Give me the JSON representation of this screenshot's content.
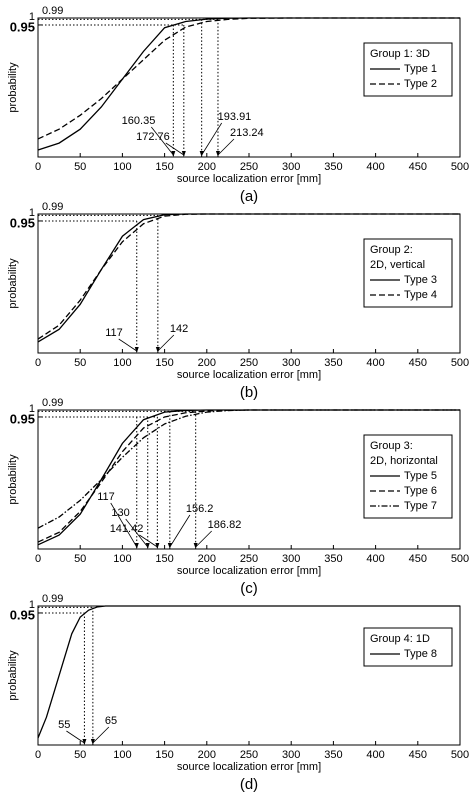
{
  "chart_data": [
    {
      "type": "line",
      "xlabel": "source localization error [mm]",
      "ylabel": "probability",
      "caption": "(a)",
      "legend_title": [
        "Group 1: 3D"
      ],
      "legend": "center right",
      "xlim": [
        0,
        500
      ],
      "ylim": [
        0,
        1
      ],
      "xticks": [
        0,
        50,
        100,
        150,
        200,
        250,
        300,
        350,
        400,
        450,
        500
      ],
      "yticks": [
        0.95,
        1
      ],
      "x": [
        0,
        25,
        50,
        75,
        100,
        125,
        150,
        175,
        200,
        225,
        250,
        300,
        350,
        400,
        450,
        500
      ],
      "series": [
        {
          "name": "Type 1",
          "color": "#000000",
          "dash": "solid",
          "values": [
            0.05,
            0.1,
            0.2,
            0.36,
            0.56,
            0.76,
            0.93,
            0.975,
            0.992,
            0.998,
            1,
            1,
            1,
            1,
            1,
            1
          ]
        },
        {
          "name": "Type 2",
          "color": "#000000",
          "dash": "dashed",
          "values": [
            0.13,
            0.2,
            0.3,
            0.42,
            0.56,
            0.7,
            0.84,
            0.935,
            0.975,
            0.99,
            0.998,
            1,
            1,
            1,
            1,
            1
          ]
        }
      ],
      "thresholds": [
        {
          "level": 0.95,
          "x": [
            160.35,
            172.76
          ]
        },
        {
          "level": 0.99,
          "x": [
            193.91,
            213.24
          ]
        }
      ]
    },
    {
      "type": "line",
      "xlabel": "source localization error [mm]",
      "ylabel": "probability",
      "caption": "(b)",
      "legend_title": [
        "Group 2:",
        "2D, vertical"
      ],
      "legend": "center right",
      "xlim": [
        0,
        500
      ],
      "ylim": [
        0,
        1
      ],
      "xticks": [
        0,
        50,
        100,
        150,
        200,
        250,
        300,
        350,
        400,
        450,
        500
      ],
      "yticks": [
        0.95,
        1
      ],
      "x": [
        0,
        25,
        50,
        75,
        100,
        125,
        150,
        175,
        200,
        250,
        300,
        350,
        400,
        450,
        500
      ],
      "series": [
        {
          "name": "Type 3",
          "color": "#000000",
          "dash": "solid",
          "values": [
            0.08,
            0.17,
            0.35,
            0.6,
            0.84,
            0.96,
            0.995,
            1,
            1,
            1,
            1,
            1,
            1,
            1,
            1
          ]
        },
        {
          "name": "Type 4",
          "color": "#000000",
          "dash": "dashed",
          "values": [
            0.1,
            0.2,
            0.38,
            0.6,
            0.8,
            0.93,
            0.985,
            0.998,
            1,
            1,
            1,
            1,
            1,
            1,
            1
          ]
        }
      ],
      "thresholds": [
        {
          "level": 0.95,
          "x": [
            117
          ]
        },
        {
          "level": 0.99,
          "x": [
            142
          ]
        }
      ]
    },
    {
      "type": "line",
      "xlabel": "source localization error [mm]",
      "ylabel": "probability",
      "caption": "(c)",
      "legend_title": [
        "Group 3:",
        "2D, horizontal"
      ],
      "legend": "center right",
      "xlim": [
        0,
        500
      ],
      "ylim": [
        0,
        1
      ],
      "xticks": [
        0,
        50,
        100,
        150,
        200,
        250,
        300,
        350,
        400,
        450,
        500
      ],
      "yticks": [
        0.95,
        1
      ],
      "x": [
        0,
        25,
        50,
        75,
        100,
        125,
        150,
        175,
        200,
        225,
        250,
        300,
        350,
        400,
        450,
        500
      ],
      "series": [
        {
          "name": "Type 5",
          "color": "#000000",
          "dash": "solid",
          "values": [
            0.03,
            0.1,
            0.25,
            0.5,
            0.76,
            0.93,
            0.985,
            0.997,
            1,
            1,
            1,
            1,
            1,
            1,
            1,
            1
          ]
        },
        {
          "name": "Type 6",
          "color": "#000000",
          "dash": "dashed",
          "values": [
            0.05,
            0.12,
            0.27,
            0.48,
            0.7,
            0.87,
            0.95,
            0.98,
            0.993,
            0.998,
            1,
            1,
            1,
            1,
            1,
            1
          ]
        },
        {
          "name": "Type 7",
          "color": "#000000",
          "dash": "dashdot",
          "values": [
            0.15,
            0.23,
            0.35,
            0.5,
            0.66,
            0.8,
            0.9,
            0.955,
            0.985,
            0.996,
            1,
            1,
            1,
            1,
            1,
            1
          ]
        }
      ],
      "thresholds": [
        {
          "level": 0.95,
          "x": [
            117,
            130,
            141.42
          ]
        },
        {
          "level": 0.99,
          "x": [
            156.2,
            186.82
          ]
        }
      ]
    },
    {
      "type": "line",
      "xlabel": "source localization error [mm]",
      "ylabel": "probability",
      "caption": "(d)",
      "legend_title": [
        "Group 4: 1D"
      ],
      "legend": "upper right",
      "xlim": [
        0,
        500
      ],
      "ylim": [
        0,
        1
      ],
      "xticks": [
        0,
        50,
        100,
        150,
        200,
        250,
        300,
        350,
        400,
        450,
        500
      ],
      "yticks": [
        0.95,
        1
      ],
      "x": [
        0,
        10,
        20,
        30,
        40,
        50,
        60,
        70,
        80,
        100,
        200,
        300,
        400,
        500
      ],
      "series": [
        {
          "name": "Type 8",
          "color": "#000000",
          "dash": "solid",
          "values": [
            0.05,
            0.2,
            0.4,
            0.6,
            0.8,
            0.92,
            0.97,
            0.993,
            1,
            1,
            1,
            1,
            1,
            1
          ]
        }
      ],
      "thresholds": [
        {
          "level": 0.95,
          "x": [
            55
          ]
        },
        {
          "level": 0.99,
          "x": [
            65
          ]
        }
      ]
    }
  ]
}
